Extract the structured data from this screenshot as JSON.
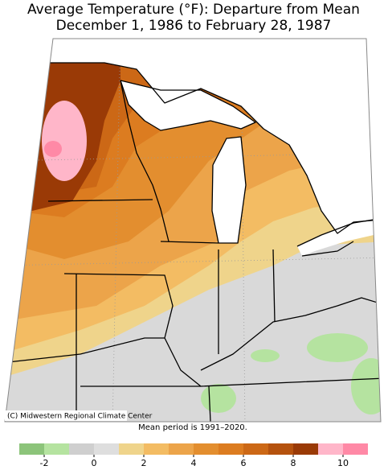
{
  "title": [
    "Average Temperature (°F): Departure from Mean",
    "December 1, 1986 to February 28, 1987"
  ],
  "credit": "(C) Midwestern Regional Climate Center",
  "note": "Mean period is 1991–2020.",
  "legend": {
    "bins": [
      -3,
      -2,
      -1,
      0,
      1,
      2,
      3,
      4,
      5,
      6,
      7,
      8,
      9,
      10,
      11
    ],
    "colors": [
      "#8cc47a",
      "#b5e3a0",
      "#cfcfcf",
      "#dedede",
      "#efd48b",
      "#f3bc63",
      "#eca44a",
      "#e38e2f",
      "#dc7c20",
      "#cc6816",
      "#b5520e",
      "#9a3a06",
      "#ffb6c9",
      "#ff89a6"
    ],
    "ticks": [
      -2,
      0,
      2,
      4,
      6,
      8,
      10
    ]
  }
}
